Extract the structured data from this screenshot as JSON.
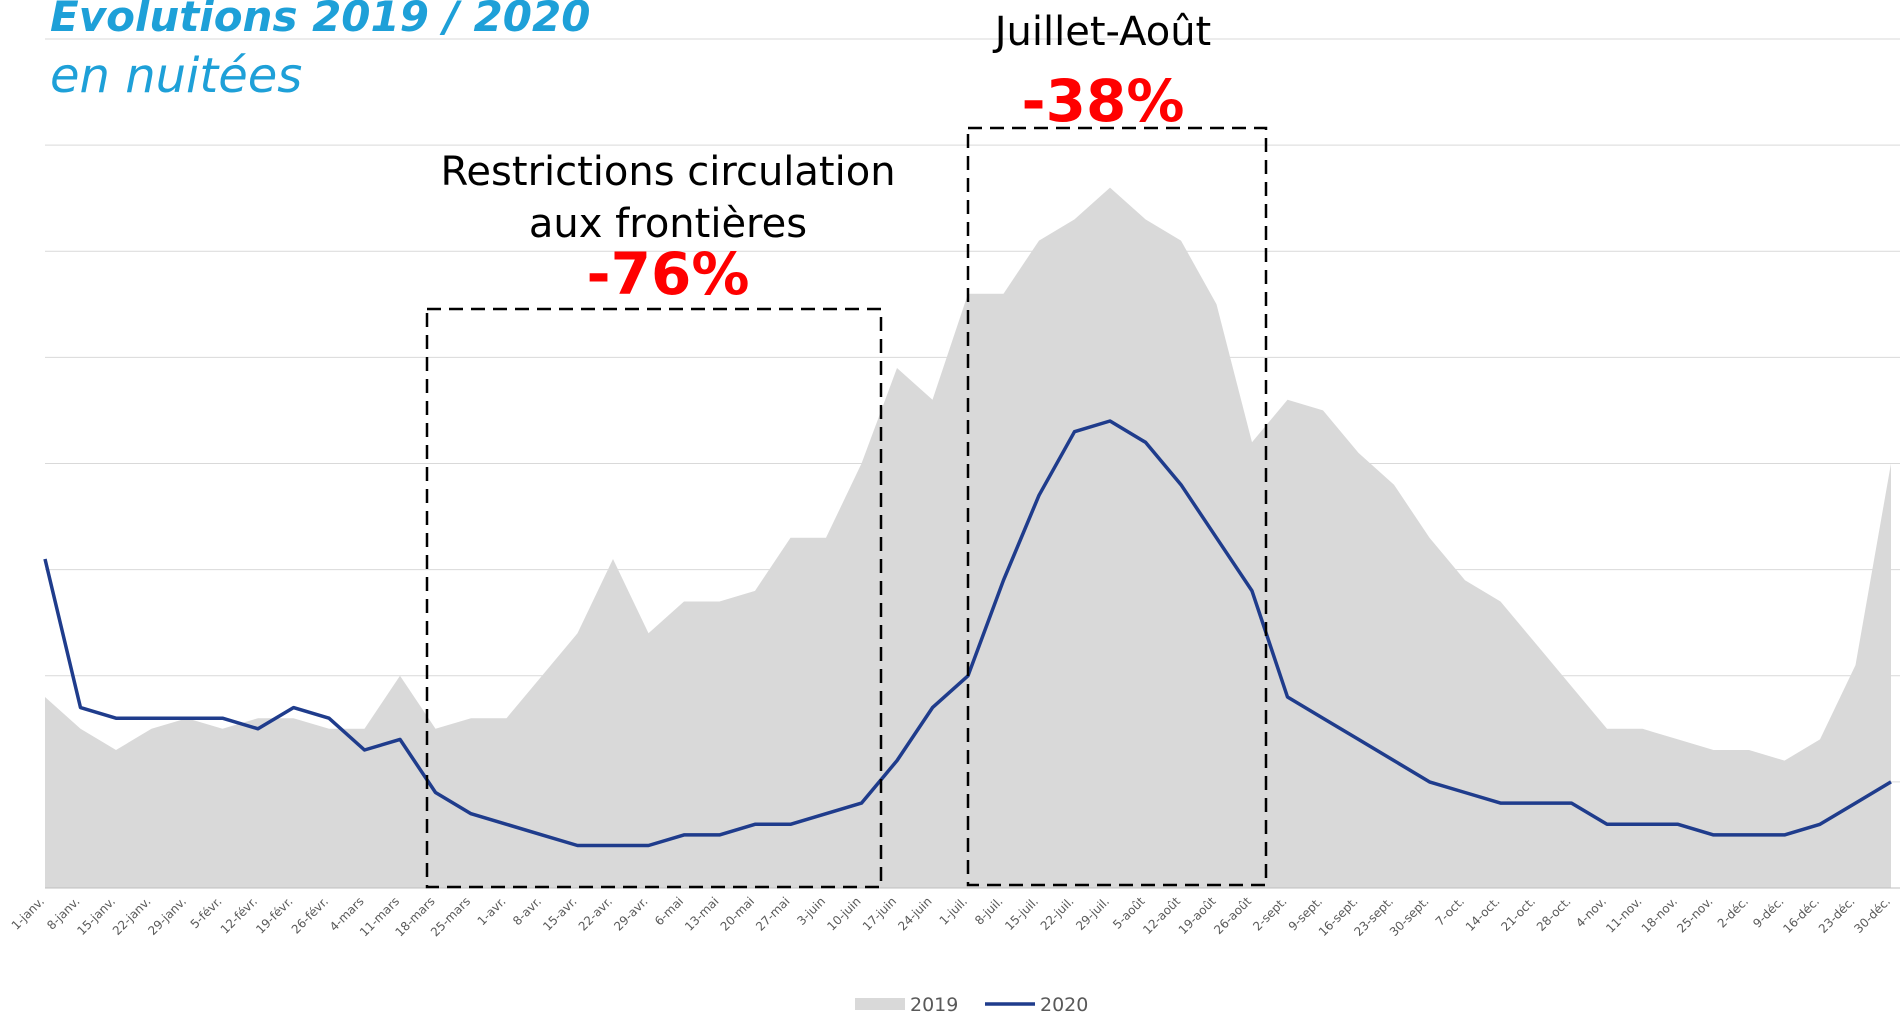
{
  "chart_data": {
    "type": "area_line",
    "title": "Evolutions 2019 / 2020",
    "subtitle": "en nuitées",
    "categories": [
      "1-janv.",
      "8-janv.",
      "15-janv.",
      "22-janv.",
      "29-janv.",
      "5-févr.",
      "12-févr.",
      "19-févr.",
      "26-févr.",
      "4-mars",
      "11-mars",
      "18-mars",
      "25-mars",
      "1-avr.",
      "8-avr.",
      "15-avr.",
      "22-avr.",
      "29-avr.",
      "6-mai",
      "13-mai",
      "20-mai",
      "27-mai",
      "3-juin",
      "10-juin",
      "17-juin",
      "24-juin",
      "1-juil.",
      "8-juil.",
      "15-juil.",
      "22-juil.",
      "29-juil.",
      "5-août",
      "12-août",
      "19-août",
      "26-août",
      "2-sept.",
      "9-sept.",
      "16-sept.",
      "23-sept.",
      "30-sept.",
      "7-oct.",
      "14-oct.",
      "21-oct.",
      "28-oct.",
      "4-nov.",
      "11-nov.",
      "18-nov.",
      "25-nov.",
      "2-déc.",
      "9-déc.",
      "16-déc.",
      "23-déc.",
      "30-déc."
    ],
    "series": [
      {
        "name": "2019",
        "kind": "area",
        "color": "#d9d9d9",
        "values": [
          1.8,
          1.5,
          1.3,
          1.5,
          1.6,
          1.5,
          1.6,
          1.6,
          1.5,
          1.5,
          2.0,
          1.5,
          1.6,
          1.6,
          2.0,
          2.4,
          3.1,
          2.4,
          2.7,
          2.7,
          2.8,
          3.3,
          3.3,
          4.0,
          4.9,
          4.6,
          5.6,
          5.6,
          6.1,
          6.3,
          6.6,
          6.3,
          6.1,
          5.5,
          4.2,
          4.6,
          4.5,
          4.1,
          3.8,
          3.3,
          2.9,
          2.7,
          2.3,
          1.9,
          1.5,
          1.5,
          1.4,
          1.3,
          1.3,
          1.2,
          1.4,
          2.1,
          4.0
        ]
      },
      {
        "name": "2020",
        "kind": "line",
        "color": "#1f3c8c",
        "values": [
          3.1,
          1.7,
          1.6,
          1.6,
          1.6,
          1.6,
          1.5,
          1.7,
          1.6,
          1.3,
          1.4,
          0.9,
          0.7,
          0.6,
          0.5,
          0.4,
          0.4,
          0.4,
          0.5,
          0.5,
          0.6,
          0.6,
          0.7,
          0.8,
          1.2,
          1.7,
          2.0,
          2.9,
          3.7,
          4.3,
          4.4,
          4.2,
          3.8,
          3.3,
          2.8,
          1.8,
          1.6,
          1.4,
          1.2,
          1.0,
          0.9,
          0.8,
          0.8,
          0.8,
          0.6,
          0.6,
          0.6,
          0.5,
          0.5,
          0.5,
          0.6,
          0.8,
          1.0
        ]
      }
    ],
    "ylim": [
      0,
      8
    ],
    "yticks": [
      0,
      1,
      2,
      3,
      4,
      5,
      6,
      7,
      8
    ],
    "grid": true,
    "legend": "bottom",
    "annotations": [
      {
        "lines": [
          "Restrictions circulation",
          "aux frontières"
        ],
        "change": {
          "value": -76,
          "label": "-76%"
        }
      },
      {
        "lines": [
          "Juillet-Août"
        ],
        "change": {
          "value": -38,
          "label": "-38%"
        }
      }
    ]
  }
}
